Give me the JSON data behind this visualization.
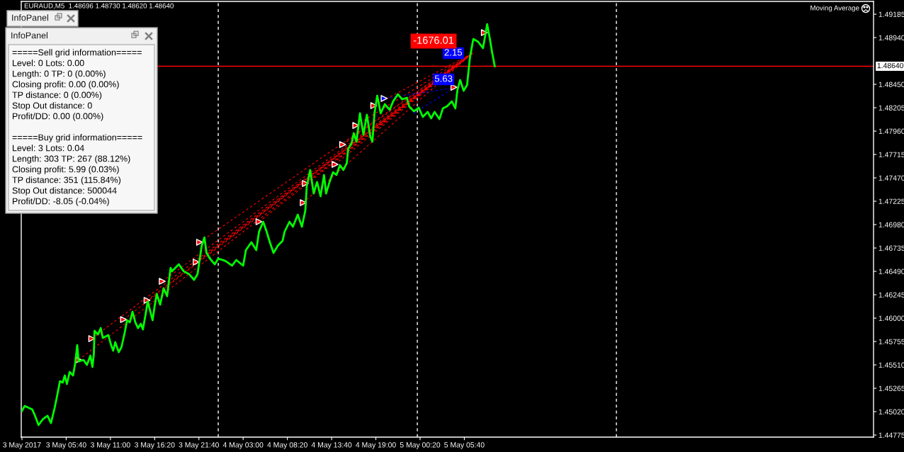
{
  "chart_data": {
    "type": "line",
    "title": "EURAUD,M5  1.48696 1.48730 1.48620 1.48640",
    "xlim": [
      "2017-05-03T00:15",
      "2017-05-07T07:00"
    ],
    "xticks": [
      {
        "value": "2017-05-03T00:20",
        "label": "3 May 2017"
      },
      {
        "value": "2017-05-03T05:40",
        "label": "3 May 05:40"
      },
      {
        "value": "2017-05-03T11:00",
        "label": "3 May 11:00"
      },
      {
        "value": "2017-05-03T16:20",
        "label": "3 May 16:20"
      },
      {
        "value": "2017-05-03T21:40",
        "label": "3 May 21:40"
      },
      {
        "value": "2017-05-04T03:00",
        "label": "4 May 03:00"
      },
      {
        "value": "2017-05-04T08:20",
        "label": "4 May 08:20"
      },
      {
        "value": "2017-05-04T13:40",
        "label": "4 May 13:40"
      },
      {
        "value": "2017-05-04T19:00",
        "label": "4 May 19:00"
      },
      {
        "value": "2017-05-05T00:20",
        "label": "5 May 00:20"
      },
      {
        "value": "2017-05-05T05:40",
        "label": "5 May 05:40"
      }
    ],
    "ylim": [
      1.44753,
      1.49319
    ],
    "yticks": [
      1.44775,
      {
        "value": 1.4502,
        "label": "1.45020"
      },
      1.45265,
      {
        "value": 1.4551,
        "label": "1.45510"
      },
      1.45755,
      {
        "value": 1.46,
        "label": "1.46000"
      },
      1.46245,
      {
        "value": 1.4649,
        "label": "1.46490"
      },
      1.46735,
      {
        "value": 1.4698,
        "label": "1.46980"
      },
      1.47225,
      {
        "value": 1.4747,
        "label": "1.47470"
      },
      1.47715,
      {
        "value": 1.4796,
        "label": "1.47960"
      },
      1.48205,
      {
        "value": 1.4845,
        "label": "1.48450"
      },
      {
        "value": 1.4894,
        "label": "1.48940"
      },
      1.49185
    ],
    "series": [
      {
        "color": "#00ff00",
        "x": [
          "2017-05-03T00:20",
          "2017-05-03T00:40",
          "2017-05-03T01:35",
          "2017-05-03T01:55",
          "2017-05-03T02:20",
          "2017-05-03T02:50",
          "2017-05-03T03:25",
          "2017-05-03T03:50",
          "2017-05-03T04:15",
          "2017-05-03T04:30",
          "2017-05-03T04:55",
          "2017-05-03T05:15",
          "2017-05-03T05:30",
          "2017-05-03T05:45",
          "2017-05-03T06:05",
          "2017-05-03T06:30",
          "2017-05-03T06:45",
          "2017-05-03T07:00",
          "2017-05-03T07:10",
          "2017-05-03T07:45",
          "2017-05-03T08:10",
          "2017-05-03T08:35",
          "2017-05-03T08:50",
          "2017-05-03T09:00",
          "2017-05-03T09:05",
          "2017-05-03T09:30",
          "2017-05-03T09:50",
          "2017-05-03T10:05",
          "2017-05-03T10:45",
          "2017-05-03T11:05",
          "2017-05-03T11:20",
          "2017-05-03T11:35",
          "2017-05-03T12:00",
          "2017-05-03T12:20",
          "2017-05-03T12:45",
          "2017-05-03T13:00",
          "2017-05-03T13:20",
          "2017-05-03T13:40",
          "2017-05-03T14:00",
          "2017-05-03T14:20",
          "2017-05-03T14:40",
          "2017-05-03T14:55",
          "2017-05-03T15:15",
          "2017-05-03T15:30",
          "2017-05-03T15:45",
          "2017-05-03T16:05",
          "2017-05-03T16:20",
          "2017-05-03T16:35",
          "2017-05-03T17:00",
          "2017-05-03T17:25",
          "2017-05-03T17:50",
          "2017-05-03T18:15",
          "2017-05-03T18:25",
          "2017-05-03T19:15",
          "2017-05-03T19:50",
          "2017-05-03T20:30",
          "2017-05-03T21:05",
          "2017-05-03T21:30",
          "2017-05-03T21:45",
          "2017-05-03T22:00",
          "2017-05-03T22:20",
          "2017-05-03T22:35",
          "2017-05-03T23:00",
          "2017-05-03T23:35",
          "2017-05-04T00:00",
          "2017-05-04T00:50",
          "2017-05-04T01:40",
          "2017-05-04T02:10",
          "2017-05-04T03:00",
          "2017-05-04T03:20",
          "2017-05-04T04:00",
          "2017-05-04T04:35",
          "2017-05-04T04:55",
          "2017-05-04T05:25",
          "2017-05-04T05:50",
          "2017-05-04T06:15",
          "2017-05-04T06:40",
          "2017-05-04T07:10",
          "2017-05-04T07:45",
          "2017-05-04T08:00",
          "2017-05-04T08:35",
          "2017-05-04T09:00",
          "2017-05-04T09:35",
          "2017-05-04T10:05",
          "2017-05-04T10:30",
          "2017-05-04T10:40",
          "2017-05-04T11:05",
          "2017-05-04T11:30",
          "2017-05-04T11:55",
          "2017-05-04T12:20",
          "2017-05-04T12:45",
          "2017-05-04T13:00",
          "2017-05-04T13:25",
          "2017-05-04T13:50",
          "2017-05-04T14:15",
          "2017-05-04T14:40",
          "2017-05-04T15:05",
          "2017-05-04T15:30",
          "2017-05-04T15:40",
          "2017-05-04T16:05",
          "2017-05-04T16:20",
          "2017-05-04T16:40",
          "2017-05-04T17:05",
          "2017-05-04T17:30",
          "2017-05-04T17:55",
          "2017-05-04T18:20",
          "2017-05-04T18:35",
          "2017-05-04T18:50",
          "2017-05-04T19:10",
          "2017-05-04T19:35",
          "2017-05-04T20:05",
          "2017-05-04T20:40",
          "2017-05-04T21:05",
          "2017-05-04T21:40",
          "2017-05-04T22:10",
          "2017-05-04T22:45",
          "2017-05-04T23:00",
          "2017-05-04T23:35",
          "2017-05-05T00:10",
          "2017-05-05T00:40",
          "2017-05-05T01:15",
          "2017-05-05T01:40",
          "2017-05-05T02:05",
          "2017-05-05T02:40",
          "2017-05-05T03:05",
          "2017-05-05T03:35",
          "2017-05-05T04:10",
          "2017-05-05T04:35",
          "2017-05-05T04:50",
          "2017-05-05T05:10",
          "2017-05-05T05:35",
          "2017-05-05T06:00",
          "2017-05-05T06:20",
          "2017-05-05T06:45",
          "2017-05-05T07:20",
          "2017-05-05T07:55",
          "2017-05-05T08:15",
          "2017-05-05T08:25",
          "2017-05-05T08:45",
          "2017-05-05T09:00",
          "2017-05-05T09:20"
        ],
        "values": [
          1.45028,
          1.4508,
          1.45042,
          1.44976,
          1.44879,
          1.44939,
          1.44976,
          1.44901,
          1.4505,
          1.45154,
          1.45339,
          1.45325,
          1.45399,
          1.4531,
          1.45436,
          1.45399,
          1.45525,
          1.45718,
          1.45547,
          1.45562,
          1.4551,
          1.45607,
          1.45488,
          1.45622,
          1.45867,
          1.45829,
          1.45896,
          1.45792,
          1.45822,
          1.45718,
          1.45659,
          1.45748,
          1.45644,
          1.45696,
          1.45859,
          1.45978,
          1.45956,
          1.46067,
          1.45956,
          1.45896,
          1.45941,
          1.45881,
          1.46045,
          1.46178,
          1.46089,
          1.45978,
          1.46126,
          1.46253,
          1.46141,
          1.46312,
          1.4623,
          1.46527,
          1.4649,
          1.46564,
          1.4649,
          1.4646,
          1.46401,
          1.4646,
          1.46609,
          1.46757,
          1.46846,
          1.46683,
          1.46624,
          1.46564,
          1.46624,
          1.46601,
          1.4655,
          1.46609,
          1.4655,
          1.46713,
          1.46795,
          1.46713,
          1.46906,
          1.4701,
          1.46906,
          1.46787,
          1.46683,
          1.46757,
          1.46809,
          1.46906,
          1.4701,
          1.46958,
          1.47084,
          1.46958,
          1.47129,
          1.47381,
          1.47552,
          1.47307,
          1.47426,
          1.47277,
          1.475,
          1.47307,
          1.47426,
          1.47529,
          1.475,
          1.47604,
          1.47552,
          1.47626,
          1.47774,
          1.47834,
          1.47938,
          1.47849,
          1.48146,
          1.47923,
          1.48131,
          1.47901,
          1.47849,
          1.48146,
          1.48331,
          1.48146,
          1.48242,
          1.48183,
          1.48272,
          1.48346,
          1.48294,
          1.48309,
          1.4822,
          1.48168,
          1.48205,
          1.48109,
          1.48161,
          1.48094,
          1.48161,
          1.48086,
          1.48198,
          1.4822,
          1.48272,
          1.48198,
          1.48391,
          1.48495,
          1.48383,
          1.48443,
          1.48725,
          1.48925,
          1.48896,
          1.48829,
          1.48992,
          1.49081,
          1.48925,
          1.48792,
          1.4864
        ]
      },
      {
        "type": "scatter",
        "color": "#ff0000",
        "marker": "triangle",
        "x": [
          "2017-05-03T07:10",
          "2017-05-03T08:45",
          "2017-05-03T12:35",
          "2017-05-03T15:25",
          "2017-05-03T17:15",
          "2017-05-03T21:20",
          "2017-05-03T21:45",
          "2017-05-04T04:55",
          "2017-05-04T10:15",
          "2017-05-04T10:30",
          "2017-05-04T14:05",
          "2017-05-04T15:00",
          "2017-05-04T16:35",
          "2017-05-04T18:45",
          "2017-05-05T04:25",
          "2017-05-05T08:05"
        ],
        "values": [
          1.45562,
          1.45785,
          1.45985,
          1.46186,
          1.46386,
          1.46587,
          1.46795,
          1.4701,
          1.4721,
          1.47411,
          1.47611,
          1.47819,
          1.48019,
          1.48227,
          1.4842,
          1.48992
        ]
      },
      {
        "type": "scatter",
        "color": "#0000ff",
        "marker": "triangle",
        "x": [
          "2017-05-04T20:00"
        ],
        "values": [
          1.48302
        ]
      },
      {
        "color": "#ff0000",
        "line_style": "dashed",
        "x": [
          "2017-05-03T07:10",
          "2017-05-05T06:40"
        ],
        "values": [
          1.45562,
          1.48777
        ]
      },
      {
        "color": "#ff0000",
        "line_style": "dashed",
        "x": [
          "2017-05-03T08:45",
          "2017-05-05T06:40"
        ],
        "values": [
          1.45785,
          1.48777
        ]
      },
      {
        "color": "#ff0000",
        "line_style": "dashed",
        "x": [
          "2017-05-03T12:35",
          "2017-05-05T06:40"
        ],
        "values": [
          1.45985,
          1.48777
        ]
      },
      {
        "color": "#ff0000",
        "line_style": "dashed",
        "x": [
          "2017-05-03T15:25",
          "2017-05-05T06:40"
        ],
        "values": [
          1.46186,
          1.48777
        ]
      },
      {
        "color": "#ff0000",
        "line_style": "dashed",
        "x": [
          "2017-05-03T17:15",
          "2017-05-05T06:40"
        ],
        "values": [
          1.46386,
          1.48777
        ]
      },
      {
        "color": "#ff0000",
        "line_style": "dashed",
        "x": [
          "2017-05-03T21:20",
          "2017-05-05T06:40"
        ],
        "values": [
          1.46587,
          1.48777
        ]
      },
      {
        "color": "#ff0000",
        "line_style": "dashed",
        "x": [
          "2017-05-03T21:45",
          "2017-05-05T06:40"
        ],
        "values": [
          1.46795,
          1.48777
        ]
      },
      {
        "color": "#ff0000",
        "line_style": "dashed",
        "x": [
          "2017-05-04T04:55",
          "2017-05-05T06:40"
        ],
        "values": [
          1.4701,
          1.48777
        ]
      },
      {
        "color": "#ff0000",
        "line_style": "dashed",
        "x": [
          "2017-05-04T10:15",
          "2017-05-05T06:40"
        ],
        "values": [
          1.4721,
          1.48777
        ]
      },
      {
        "color": "#ff0000",
        "line_style": "dashed",
        "x": [
          "2017-05-04T10:30",
          "2017-05-05T06:40"
        ],
        "values": [
          1.47411,
          1.48777
        ]
      },
      {
        "color": "#ff0000",
        "line_style": "dashed",
        "x": [
          "2017-05-04T14:05",
          "2017-05-05T06:40"
        ],
        "values": [
          1.47611,
          1.48777
        ]
      },
      {
        "color": "#ff0000",
        "line_style": "dashed",
        "x": [
          "2017-05-04T15:00",
          "2017-05-05T06:40"
        ],
        "values": [
          1.47819,
          1.48777
        ]
      },
      {
        "color": "#ff0000",
        "line_style": "dashed",
        "x": [
          "2017-05-04T16:35",
          "2017-05-05T06:40"
        ],
        "values": [
          1.48019,
          1.48777
        ]
      },
      {
        "color": "#ff0000",
        "line_style": "dashed",
        "x": [
          "2017-05-04T18:45",
          "2017-05-05T06:40"
        ],
        "values": [
          1.48227,
          1.48777
        ]
      },
      {
        "color": "#0000ff",
        "line_style": "dashed",
        "x": [
          "2017-05-04T20:00",
          "2017-05-05T04:25"
        ],
        "values": [
          1.48302,
          1.48413
        ]
      },
      {
        "color": "#0000ff",
        "line_style": "dashed",
        "x": [
          "2017-05-04T23:35",
          "2017-05-05T04:25"
        ],
        "values": [
          1.48146,
          1.48413
        ]
      }
    ],
    "ref_lines": [
      {
        "axis": "x",
        "value": "2017-05-04T00:00",
        "color": "#ffffff",
        "line_style": "dashed"
      },
      {
        "axis": "x",
        "value": "2017-05-05T00:00",
        "color": "#ffffff",
        "line_style": "dashed"
      },
      {
        "axis": "x",
        "value": "2017-05-06T00:00",
        "color": "#ffffff",
        "line_style": "dashed"
      },
      {
        "axis": "y",
        "value": 1.4864,
        "label": "1.48640",
        "color": "#ff0000",
        "line_style": "solid"
      }
    ],
    "annotations": [
      "Moving Average",
      "InfoPanel",
      "InfoPanel",
      "=====Sell grid information=====",
      "Level: 0 Lots: 0.00",
      "Length: 0 TP: 0 (0.00%)",
      "Closing profit: 0.00 (0.00%)",
      "TP distance: 0 (0.00%)",
      "Stop Out distance: 0",
      "Profit/DD: 0.00 (0.00%)",
      "=====Buy grid information=====",
      "Level: 3 Lots: 0.04",
      "Length: 303 TP: 267 (88.12%)",
      "Closing profit: 5.99 (0.03%)",
      "TP distance: 351 (115.84%)",
      "Stop Out distance: 500044",
      "Profit/DD: -8.05 (-0.04%)",
      "-1676.01",
      {
        "text": "5.63",
        "x": "2017-05-05T03:10",
        "y": 1.48502
      },
      {
        "text": "2.15",
        "x": "2017-05-05T04:20",
        "y": 1.48777
      }
    ]
  }
}
